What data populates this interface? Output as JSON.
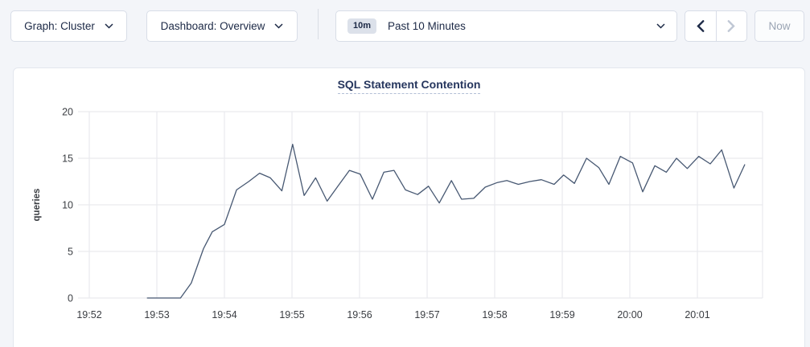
{
  "toolbar": {
    "graph_dropdown": {
      "label": "Graph: Cluster"
    },
    "dashboard_dropdown": {
      "label": "Dashboard: Overview"
    },
    "time_selector": {
      "badge": "10m",
      "label": "Past 10 Minutes"
    },
    "now_label": "Now"
  },
  "colors": {
    "page_bg": "#f3f5f9",
    "panel_bg": "#ffffff",
    "border": "#d8dde7",
    "navy_text": "#1c2946",
    "disabled_text": "#9aa4b3",
    "badge_bg": "#dce1ea",
    "title_text": "#26365e",
    "grid_line": "#e9eaee",
    "tick_text": "#3a3d42",
    "series_line": "#475872"
  },
  "chart_data": {
    "type": "line",
    "title": "SQL Statement Contention",
    "xlabel": "",
    "ylabel": "queries",
    "ylim": [
      0,
      20
    ],
    "y_ticks": [
      0,
      5,
      10,
      15,
      20
    ],
    "x_tick_labels": [
      "19:52",
      "19:53",
      "19:54",
      "19:55",
      "19:56",
      "19:57",
      "19:58",
      "19:59",
      "20:00",
      "20:01"
    ],
    "x_unit": "minutes after 19:52, ticks every 1 minute",
    "grid": true,
    "legend": "none",
    "series": [
      {
        "name": "queries",
        "points": [
          [
            0.86,
            0
          ],
          [
            1.02,
            0
          ],
          [
            1.18,
            0
          ],
          [
            1.35,
            0
          ],
          [
            1.51,
            1.6
          ],
          [
            1.69,
            5.3
          ],
          [
            1.82,
            7.1
          ],
          [
            2.0,
            7.9
          ],
          [
            2.18,
            11.6
          ],
          [
            2.36,
            12.5
          ],
          [
            2.52,
            13.4
          ],
          [
            2.68,
            12.9
          ],
          [
            2.85,
            11.5
          ],
          [
            3.01,
            16.5
          ],
          [
            3.18,
            11.0
          ],
          [
            3.35,
            12.9
          ],
          [
            3.52,
            10.4
          ],
          [
            3.68,
            12.0
          ],
          [
            3.85,
            13.7
          ],
          [
            4.01,
            13.3
          ],
          [
            4.19,
            10.6
          ],
          [
            4.36,
            13.5
          ],
          [
            4.51,
            13.7
          ],
          [
            4.68,
            11.6
          ],
          [
            4.86,
            11.1
          ],
          [
            5.02,
            12.0
          ],
          [
            5.18,
            10.2
          ],
          [
            5.36,
            12.6
          ],
          [
            5.51,
            10.6
          ],
          [
            5.69,
            10.7
          ],
          [
            5.86,
            11.9
          ],
          [
            6.04,
            12.4
          ],
          [
            6.18,
            12.6
          ],
          [
            6.35,
            12.2
          ],
          [
            6.52,
            12.5
          ],
          [
            6.69,
            12.7
          ],
          [
            6.88,
            12.2
          ],
          [
            7.02,
            13.2
          ],
          [
            7.18,
            12.3
          ],
          [
            7.36,
            15.0
          ],
          [
            7.54,
            14.0
          ],
          [
            7.69,
            12.2
          ],
          [
            7.86,
            15.2
          ],
          [
            8.04,
            14.5
          ],
          [
            8.19,
            11.4
          ],
          [
            8.37,
            14.2
          ],
          [
            8.54,
            13.5
          ],
          [
            8.69,
            15.0
          ],
          [
            8.85,
            13.9
          ],
          [
            9.02,
            15.2
          ],
          [
            9.19,
            14.4
          ],
          [
            9.36,
            15.9
          ],
          [
            9.54,
            11.8
          ],
          [
            9.7,
            14.3
          ]
        ]
      }
    ]
  }
}
